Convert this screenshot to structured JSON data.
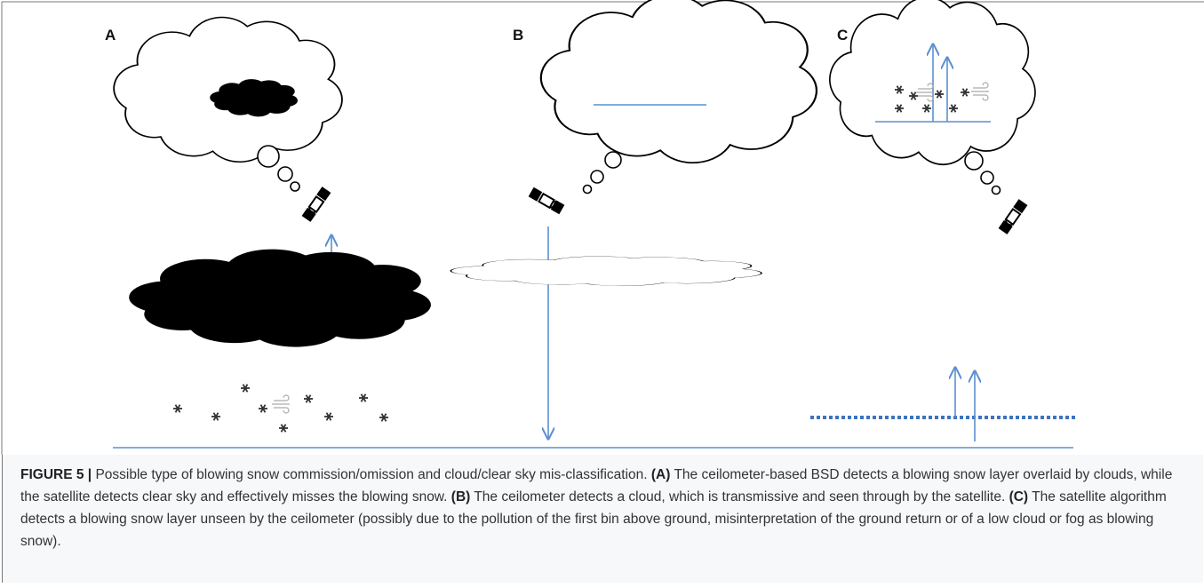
{
  "figure": {
    "panels": [
      {
        "label": "A"
      },
      {
        "label": "B"
      },
      {
        "label": "C"
      }
    ],
    "caption": {
      "parts": [
        {
          "text": "FIGURE 5 |",
          "bold": true
        },
        {
          "text": "Possible type of blowing snow commission/omission and cloud/clear sky mis-classification.",
          "bold": false
        },
        {
          "text": "(A)",
          "bold": true
        },
        {
          "text": "The ceilometer-based BSD detects a blowing snow layer overlaid by clouds, while the satellite detects clear sky and effectively misses the blowing snow.",
          "bold": false
        },
        {
          "text": "(B)",
          "bold": true
        },
        {
          "text": "The ceilometer detects a cloud, which is transmissive and seen through by the satellite.",
          "bold": false
        },
        {
          "text": "(C)",
          "bold": true
        },
        {
          "text": "The satellite algorithm detects a blowing snow layer unseen by the ceilometer (possibly due to the pollution of the first bin above ground, misinterpretation of the ground return or of a low cloud or fog as blowing snow).",
          "bold": false
        }
      ]
    }
  }
}
